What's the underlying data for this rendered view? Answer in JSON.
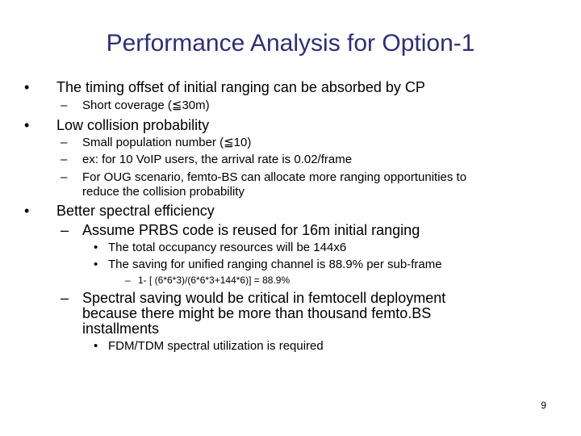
{
  "slide": {
    "title": "Performance Analysis for Option-1",
    "page_number": "9",
    "bullet_glyph": "•",
    "dash_glyph": "–",
    "items": {
      "b1": "The timing offset of initial ranging can be absorbed by CP",
      "b1_s1": "Short coverage (≦30m)",
      "b2": "Low collision probability",
      "b2_s1": "Small population number (≦10)",
      "b2_s2": "ex: for 10 VoIP users, the arrival rate is 0.02/frame",
      "b2_s3_l1": "For OUG scenario, femto-BS can allocate more ranging opportunities to",
      "b2_s3_l2": "reduce the collision probability",
      "b3": "Better spectral efficiency",
      "b3_s1": "Assume PRBS code is reused for 16m initial ranging",
      "b3_s1_a": "The total occupancy resources will be 144x6",
      "b3_s1_b": "The saving for unified ranging channel is 88.9% per sub-frame",
      "b3_s1_b_i": "1- [ (6*6*3)/(6*6*3+144*6)] = 88.9%",
      "b3_s2_l1": "Spectral saving would be critical in femtocell deployment",
      "b3_s2_l2": "because there might be more than thousand femto.BS",
      "b3_s2_l3": "installments",
      "b3_s2_a": "FDM/TDM spectral utilization is required"
    }
  }
}
